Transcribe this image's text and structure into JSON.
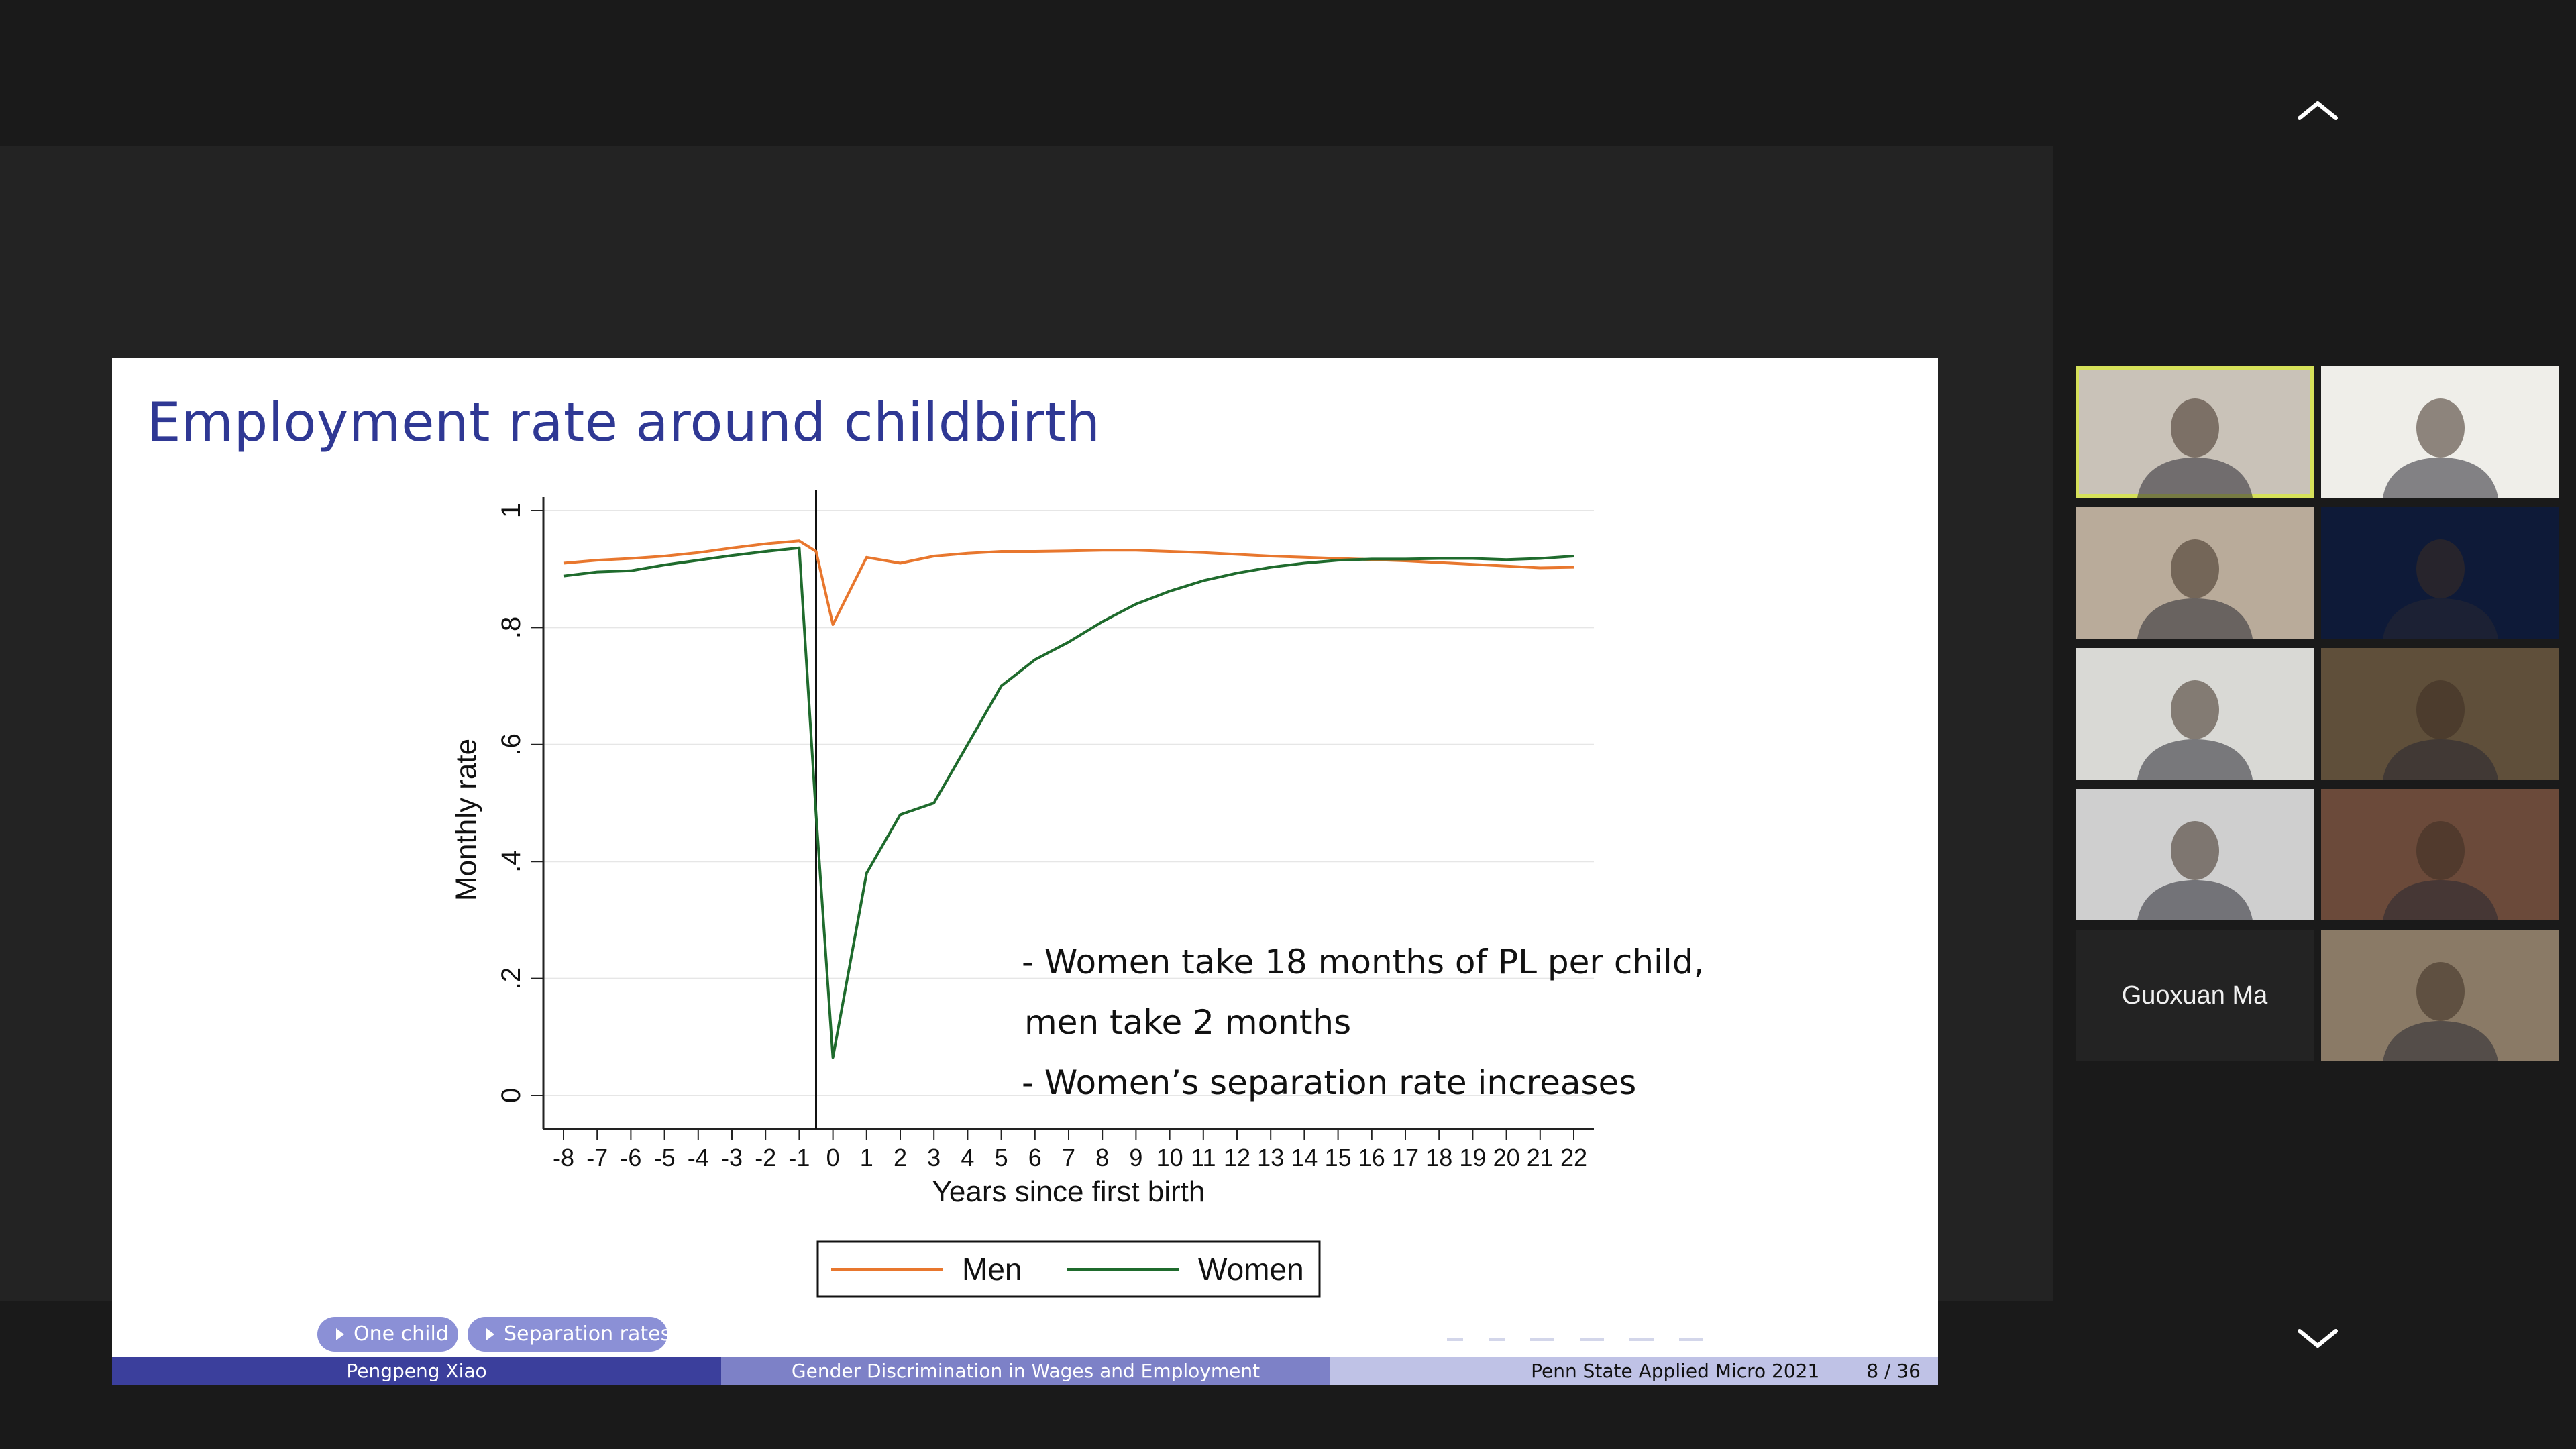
{
  "slide": {
    "title": "Employment rate around childbirth",
    "annotations": [
      "- Women take 18 months of PL per child,",
      "men take 2 months",
      "- Women’s separation rate increases"
    ],
    "buttons": [
      "One child",
      "Separation rates"
    ],
    "footer": {
      "author": "Pengpeng Xiao",
      "title": "Gender Discrimination in Wages and Employment",
      "venue": "Penn State Applied Micro 2021",
      "page": "8 / 36"
    }
  },
  "chart_data": {
    "type": "line",
    "xlabel": "Years since first birth",
    "ylabel": "Monthly rate",
    "xlim": [
      -8,
      22
    ],
    "ylim": [
      0,
      1
    ],
    "y_ticks": [
      "0",
      ".2",
      ".4",
      ".6",
      ".8",
      "1"
    ],
    "x_ticks": [
      "-8",
      "-7",
      "-6",
      "-5",
      "-4",
      "-3",
      "-2",
      "-1",
      "0",
      "1",
      "2",
      "3",
      "4",
      "5",
      "6",
      "7",
      "8",
      "9",
      "10",
      "11",
      "12",
      "13",
      "14",
      "15",
      "16",
      "17",
      "18",
      "19",
      "20",
      "21",
      "22"
    ],
    "grid": true,
    "vline_x": -0.5,
    "legend_position": "bottom",
    "series": [
      {
        "name": "Men",
        "color": "#e8772e",
        "points": [
          [
            -8,
            0.91
          ],
          [
            -7,
            0.915
          ],
          [
            -6,
            0.918
          ],
          [
            -5,
            0.922
          ],
          [
            -4,
            0.928
          ],
          [
            -3,
            0.936
          ],
          [
            -2,
            0.943
          ],
          [
            -1,
            0.948
          ],
          [
            -0.5,
            0.93
          ],
          [
            0,
            0.805
          ],
          [
            1,
            0.92
          ],
          [
            2,
            0.91
          ],
          [
            3,
            0.922
          ],
          [
            4,
            0.927
          ],
          [
            5,
            0.93
          ],
          [
            6,
            0.93
          ],
          [
            7,
            0.931
          ],
          [
            8,
            0.932
          ],
          [
            9,
            0.932
          ],
          [
            10,
            0.93
          ],
          [
            11,
            0.928
          ],
          [
            12,
            0.925
          ],
          [
            13,
            0.922
          ],
          [
            14,
            0.92
          ],
          [
            15,
            0.918
          ],
          [
            16,
            0.916
          ],
          [
            17,
            0.914
          ],
          [
            18,
            0.911
          ],
          [
            19,
            0.908
          ],
          [
            20,
            0.905
          ],
          [
            21,
            0.902
          ],
          [
            22,
            0.903
          ]
        ]
      },
      {
        "name": "Women",
        "color": "#1f6b2d",
        "points": [
          [
            -8,
            0.888
          ],
          [
            -7,
            0.895
          ],
          [
            -6,
            0.897
          ],
          [
            -5,
            0.907
          ],
          [
            -4,
            0.915
          ],
          [
            -3,
            0.923
          ],
          [
            -2,
            0.93
          ],
          [
            -1,
            0.936
          ],
          [
            -0.5,
            0.48
          ],
          [
            0,
            0.065
          ],
          [
            1,
            0.38
          ],
          [
            2,
            0.48
          ],
          [
            3,
            0.5
          ],
          [
            4,
            0.6
          ],
          [
            5,
            0.7
          ],
          [
            6,
            0.745
          ],
          [
            7,
            0.775
          ],
          [
            8,
            0.81
          ],
          [
            9,
            0.84
          ],
          [
            10,
            0.862
          ],
          [
            11,
            0.88
          ],
          [
            12,
            0.893
          ],
          [
            13,
            0.903
          ],
          [
            14,
            0.91
          ],
          [
            15,
            0.915
          ],
          [
            16,
            0.917
          ],
          [
            17,
            0.917
          ],
          [
            18,
            0.918
          ],
          [
            19,
            0.918
          ],
          [
            20,
            0.916
          ],
          [
            21,
            0.918
          ],
          [
            22,
            0.922
          ]
        ]
      }
    ]
  },
  "participants": [
    {
      "name": "",
      "active": true,
      "bg": "#c9c2b8"
    },
    {
      "name": "",
      "active": false,
      "bg": "#efeee9"
    },
    {
      "name": "",
      "active": false,
      "bg": "#b9ab9a"
    },
    {
      "name": "",
      "active": false,
      "bg": "#0e1a38"
    },
    {
      "name": "",
      "active": false,
      "bg": "#d9d9d5"
    },
    {
      "name": "",
      "active": false,
      "bg": "#5f4f3a"
    },
    {
      "name": "",
      "active": false,
      "bg": "#cfcfcf"
    },
    {
      "name": "",
      "active": false,
      "bg": "#6b4a3a"
    },
    {
      "name": "Guoxuan Ma",
      "active": false,
      "bg": "#232323"
    },
    {
      "name": "",
      "active": false,
      "bg": "#8a7a66"
    }
  ]
}
